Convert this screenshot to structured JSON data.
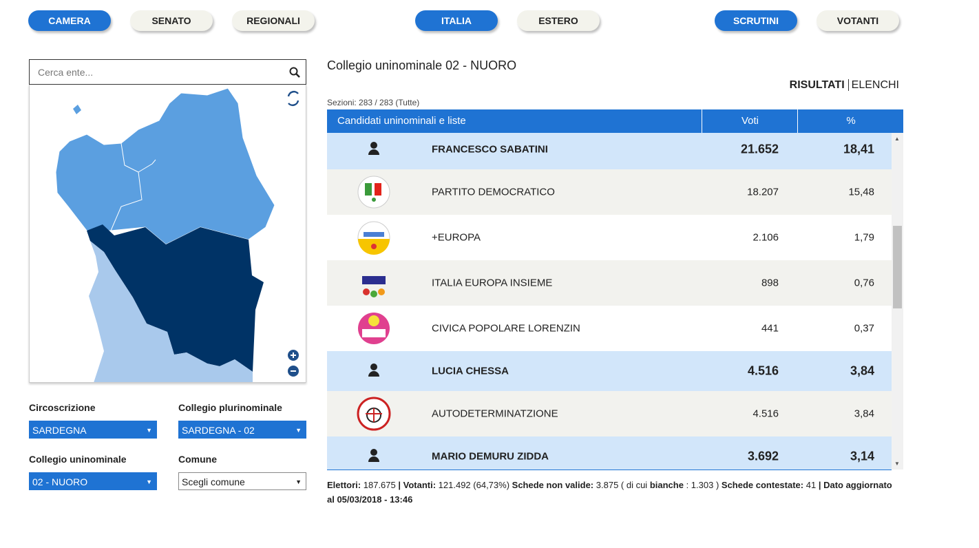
{
  "nav": {
    "groups": [
      [
        "CAMERA",
        "SENATO",
        "REGIONALI"
      ],
      [
        "ITALIA",
        "ESTERO"
      ],
      [
        "SCRUTINI",
        "VOTANTI"
      ]
    ]
  },
  "sidebar": {
    "search_placeholder": "Cerca ente...",
    "filters": [
      {
        "label": "Circoscrizione",
        "value": "SARDEGNA"
      },
      {
        "label": "Collegio plurinominale",
        "value": "SARDEGNA - 02"
      },
      {
        "label": "Collegio uninominale",
        "value": "02 - NUORO"
      },
      {
        "label": "Comune",
        "value": "Scegli comune"
      }
    ]
  },
  "main": {
    "title": "Collegio uninominale 02 - NUORO",
    "tabs": [
      "RISULTATI",
      "ELENCHI"
    ],
    "sections": "Sezioni: 283 / 283 (Tutte)",
    "table": {
      "headers": [
        "Candidati uninominali e liste",
        "Voti",
        "%"
      ],
      "rows": [
        {
          "kind": "candidate",
          "name": "FRANCESCO SABATINI",
          "votes": "21.652",
          "percent": "18,41"
        },
        {
          "kind": "list",
          "name": "PARTITO DEMOCRATICO",
          "votes": "18.207",
          "percent": "15,48"
        },
        {
          "kind": "list",
          "name": "+EUROPA",
          "votes": "2.106",
          "percent": "1,79"
        },
        {
          "kind": "list",
          "name": "ITALIA EUROPA INSIEME",
          "votes": "898",
          "percent": "0,76"
        },
        {
          "kind": "list",
          "name": "CIVICA POPOLARE LORENZIN",
          "votes": "441",
          "percent": "0,37"
        },
        {
          "kind": "candidate",
          "name": "LUCIA CHESSA",
          "votes": "4.516",
          "percent": "3,84"
        },
        {
          "kind": "list",
          "name": "AUTODETERMINATZIONE",
          "votes": "4.516",
          "percent": "3,84"
        },
        {
          "kind": "candidate",
          "name": "MARIO DEMURU ZIDDA",
          "votes": "3.692",
          "percent": "3,14"
        }
      ]
    },
    "footer": [
      {
        "text": "Elettori:",
        "bold": true
      },
      {
        "text": "187.675",
        "bold": false
      },
      {
        "text": "| Votanti:",
        "bold": true
      },
      {
        "text": "121.492 (64,73%)",
        "bold": false
      },
      {
        "text": "Schede non valide:",
        "bold": true
      },
      {
        "text": "3.875 ( di cui",
        "bold": false
      },
      {
        "text": "bianche",
        "bold": true
      },
      {
        "text": ": 1.303 )",
        "bold": false
      },
      {
        "text": "Schede contestate:",
        "bold": true
      },
      {
        "text": "41",
        "bold": false
      },
      {
        "text": "| Dato aggiornato al 05/03/2018 - 13:46",
        "bold": true
      }
    ]
  }
}
